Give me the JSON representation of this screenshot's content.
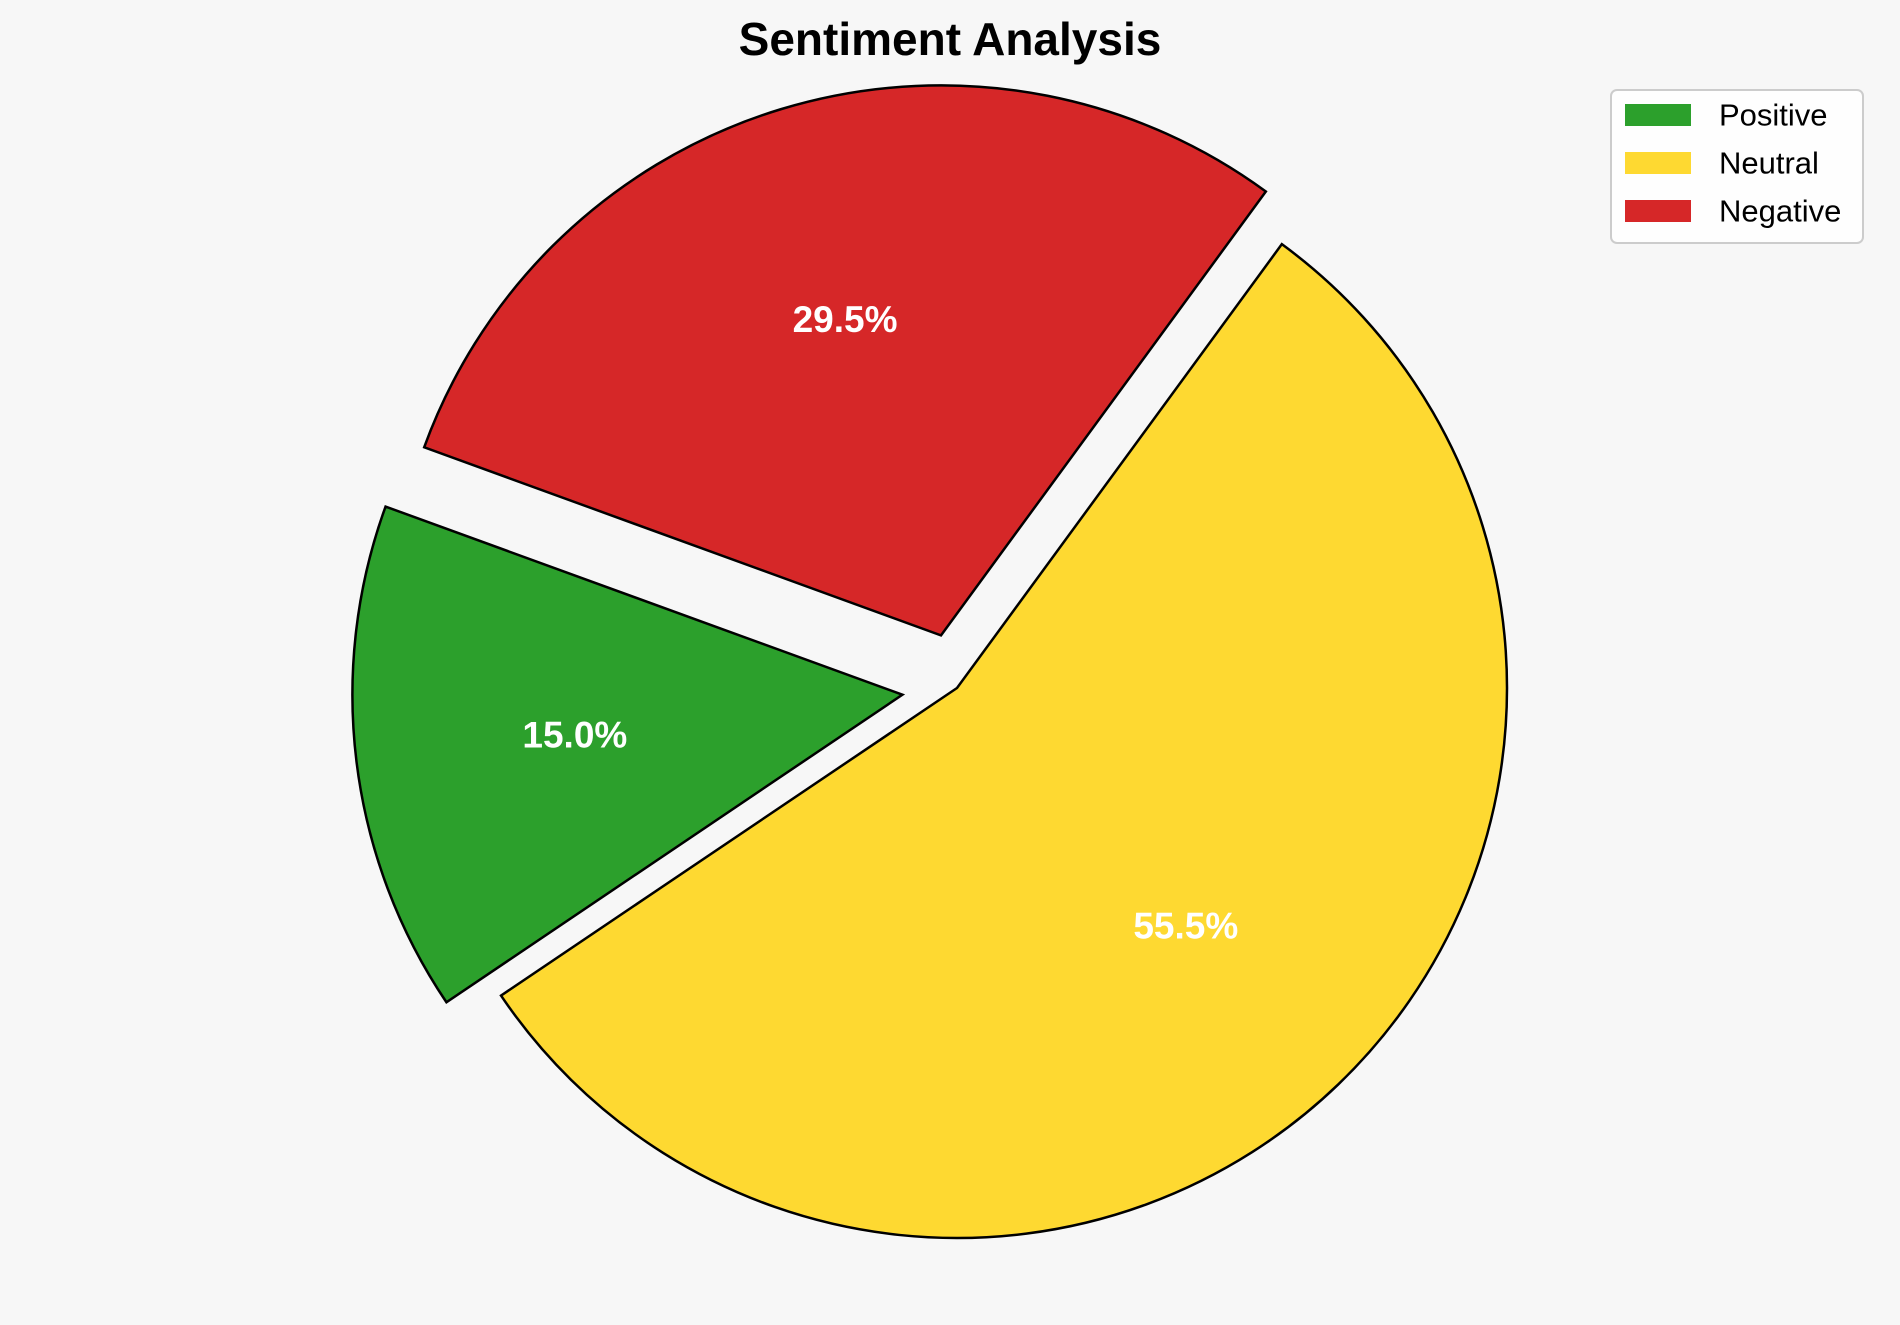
{
  "chart_data": {
    "type": "pie",
    "title": "Sentiment Analysis",
    "categories": [
      "Positive",
      "Neutral",
      "Negative"
    ],
    "values": [
      15.0,
      55.5,
      29.5
    ],
    "labels": [
      "15.0%",
      "55.5%",
      "29.5%"
    ],
    "colors": [
      "#2ca02c",
      "#fed931",
      "#d62728"
    ],
    "exploded": [
      true,
      false,
      true
    ],
    "start_angle_deg": 160,
    "direction": "counterclockwise",
    "legend": {
      "location": "top-right",
      "entries": [
        "Positive",
        "Neutral",
        "Negative"
      ]
    }
  }
}
